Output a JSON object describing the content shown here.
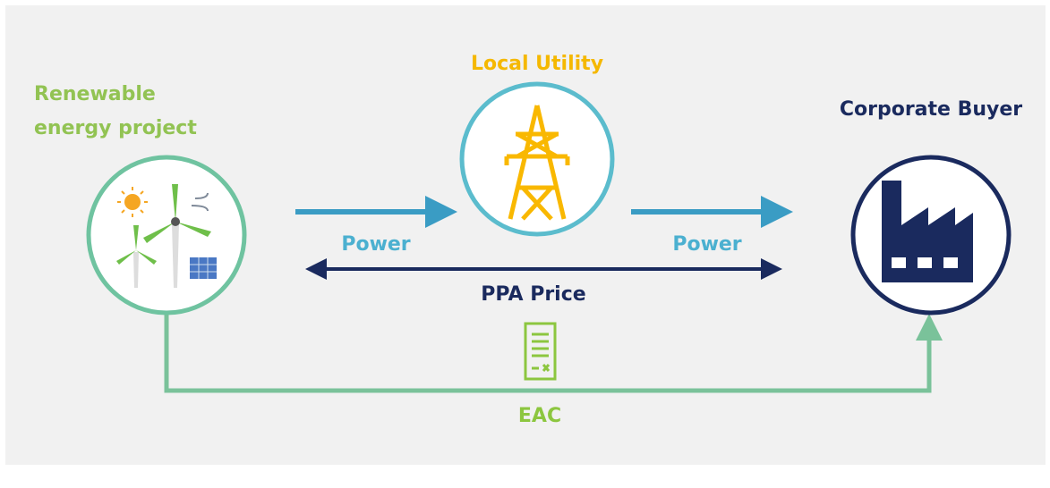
{
  "nodes": [
    {
      "label_lines": [
        "Renewable",
        "energy project"
      ]
    },
    {
      "label_lines": [
        "Local Utility"
      ]
    },
    {
      "label_lines": [
        "Corporate Buyer"
      ]
    }
  ],
  "flows": [
    {
      "label": "Power"
    },
    {
      "label": "Power"
    },
    {
      "label": "PPA Price"
    },
    {
      "label": "EAC"
    }
  ]
}
